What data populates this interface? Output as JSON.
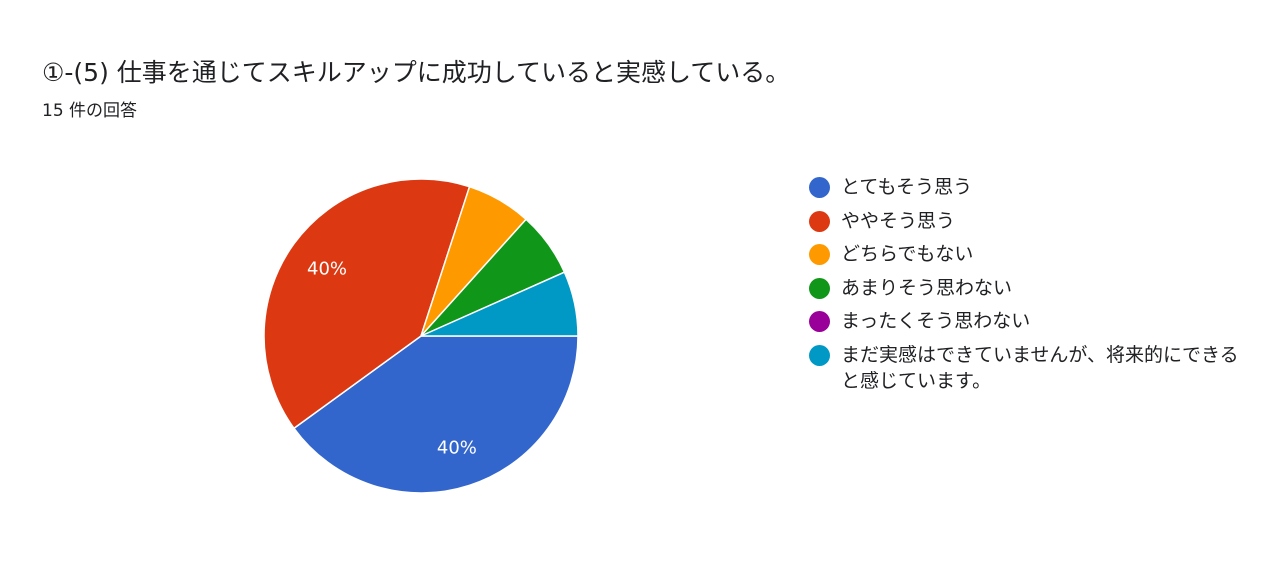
{
  "header": {
    "title": "①-(5)   仕事を通じてスキルアップに成功していると実感している。",
    "response_count": "15 件の回答"
  },
  "chart_data": {
    "type": "pie",
    "title": "①-(5)   仕事を通じてスキルアップに成功していると実感している。",
    "total_responses": 15,
    "categories": [
      "とてもそう思う",
      "ややそう思う",
      "どちらでもない",
      "あまりそう思わない",
      "まったくそう思わない",
      "まだ実感はできていませんが、将来的にできると感じています。"
    ],
    "values": [
      6,
      6,
      1,
      1,
      0,
      1
    ],
    "data_labels": [
      "40%",
      "40%",
      "",
      "",
      "",
      ""
    ],
    "colors": [
      "#3366cc",
      "#dc3912",
      "#ff9900",
      "#109618",
      "#990099",
      "#0099c6"
    ],
    "legend_position": "right"
  },
  "legend": {
    "items": [
      {
        "label": "とてもそう思う",
        "color": "#3366cc"
      },
      {
        "label": "ややそう思う",
        "color": "#dc3912"
      },
      {
        "label": "どちらでもない",
        "color": "#ff9900"
      },
      {
        "label": "あまりそう思わない",
        "color": "#109618"
      },
      {
        "label": "まったくそう思わない",
        "color": "#990099"
      },
      {
        "label": "まだ実感はできていませんが、将来的にできると感じています。",
        "color": "#0099c6"
      }
    ]
  }
}
